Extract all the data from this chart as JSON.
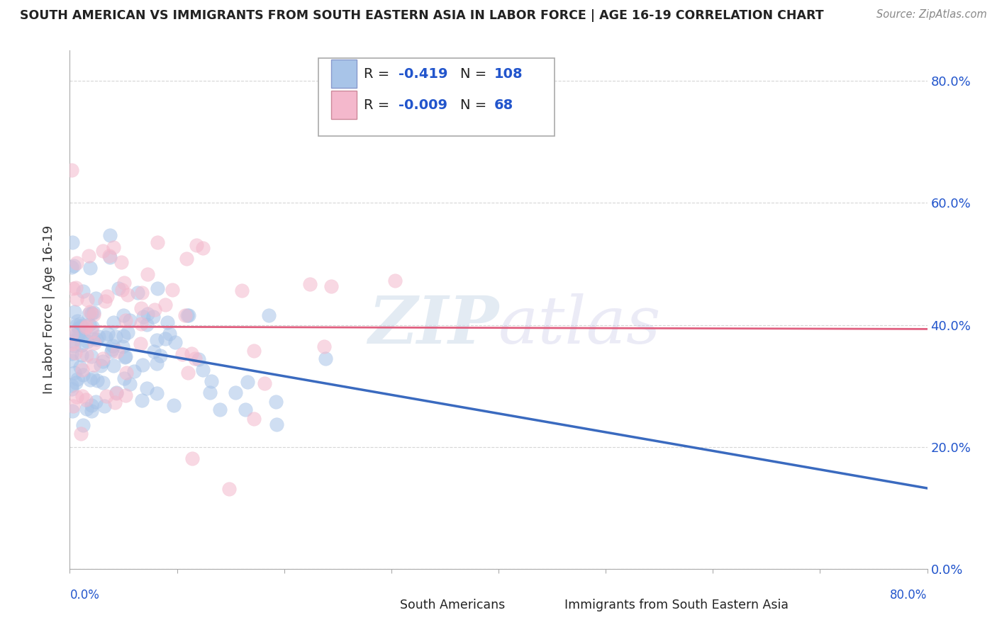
{
  "title": "SOUTH AMERICAN VS IMMIGRANTS FROM SOUTH EASTERN ASIA IN LABOR FORCE | AGE 16-19 CORRELATION CHART",
  "source": "Source: ZipAtlas.com",
  "ylabel": "In Labor Force | Age 16-19",
  "background_color": "#ffffff",
  "grid_color": "#cccccc",
  "series1_label": "South Americans",
  "series2_label": "Immigrants from South Eastern Asia",
  "series1_color": "#a8c4e8",
  "series2_color": "#f4b8cc",
  "series1_line_color": "#3a6abf",
  "series2_line_color": "#e06080",
  "series1_R": -0.419,
  "series1_N": 108,
  "series2_R": -0.009,
  "series2_N": 68,
  "xlim": [
    0.0,
    0.8
  ],
  "ylim": [
    0.0,
    0.85
  ],
  "ytick_vals": [
    0.0,
    0.2,
    0.4,
    0.6,
    0.8
  ],
  "ytick_labels": [
    "0.0%",
    "20.0%",
    "40.0%",
    "60.0%",
    "80.0%"
  ],
  "seed1": 42,
  "seed2": 99,
  "legend_R_color": "#2255cc",
  "legend_N_color": "#2255cc",
  "legend_R_label_color": "#333333"
}
